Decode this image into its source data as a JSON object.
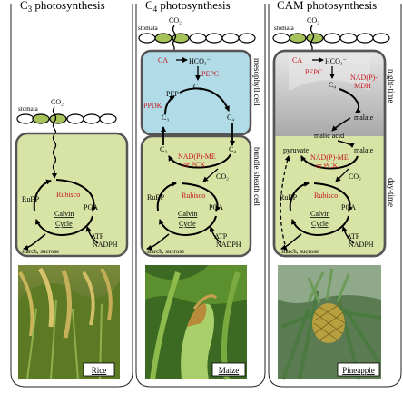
{
  "panels": [
    {
      "title_main": "C",
      "title_sub": "3",
      "title_rest": " photosynthesis",
      "stomata": "stomata",
      "co2": "CO₂",
      "rubisco": "Rubisco",
      "rubp": "RuBP",
      "pga": "PGA",
      "calvin1": "Calvin",
      "calvin2": "Cycle",
      "atp": "ATP",
      "nadph": "NADPH",
      "starch": "starch, sucrose",
      "photo_label": "Rice"
    },
    {
      "title_main": "C",
      "title_sub": "4",
      "title_rest": " photosynthesis",
      "stomata": "stomata",
      "co2": "CO₂",
      "ca": "CA",
      "hco3": "HCO₃⁻",
      "pepc": "PEPC",
      "pep": "PEP",
      "ppdk": "PPDK",
      "c4_top": "C₄",
      "c3_top": "C₃",
      "c3_bottom": "C₃",
      "c4_bottom": "C₄",
      "nadp_me1": "NAD(P)-ME",
      "nadp_me2": "or PCK",
      "co2_inner": "CO₂",
      "rubisco": "Rubisco",
      "rubp": "RuBP",
      "pga": "PGA",
      "calvin1": "Calvin",
      "calvin2": "Cycle",
      "atp": "ATP",
      "nadph": "NADPH",
      "starch": "starch, sucrose",
      "side_top": "mesophyll cell",
      "side_bottom": "bundle sheath cell",
      "photo_label": "Maize"
    },
    {
      "title_main": "CAM photosynthesis",
      "stomata": "stomata",
      "co2": "CO₂",
      "ca": "CA",
      "hco3": "HCO₃⁻",
      "pepc": "PEPC",
      "c4": "C₄",
      "nadp_mdh1": "NAD(P)-",
      "nadp_mdh2": "MDH",
      "malate_night": "malate",
      "malic_acid": "malic acid",
      "pyruvate": "pyruvate",
      "malate_day": "malate",
      "nadp_me1": "NAD(P)-ME",
      "nadp_me2": "or PCK",
      "co2_inner": "CO₂",
      "rubisco": "Rubisco",
      "rubp": "RuBP",
      "pga": "PGA",
      "calvin1": "Calvin",
      "calvin2": "Cycle",
      "atp": "ATP",
      "nadph": "NADPH",
      "starch": "starch, sucrose",
      "side_top": "night-time",
      "side_bottom": "day-time",
      "photo_label": "Pineapple"
    }
  ],
  "colors": {
    "cell_green": "#d7e4a6",
    "mesophyll_blue": "#b2dbe8",
    "night_gray": "#c8c8c8",
    "leaf_green": "#a5c35a",
    "enzyme_red": "#c4161c"
  }
}
